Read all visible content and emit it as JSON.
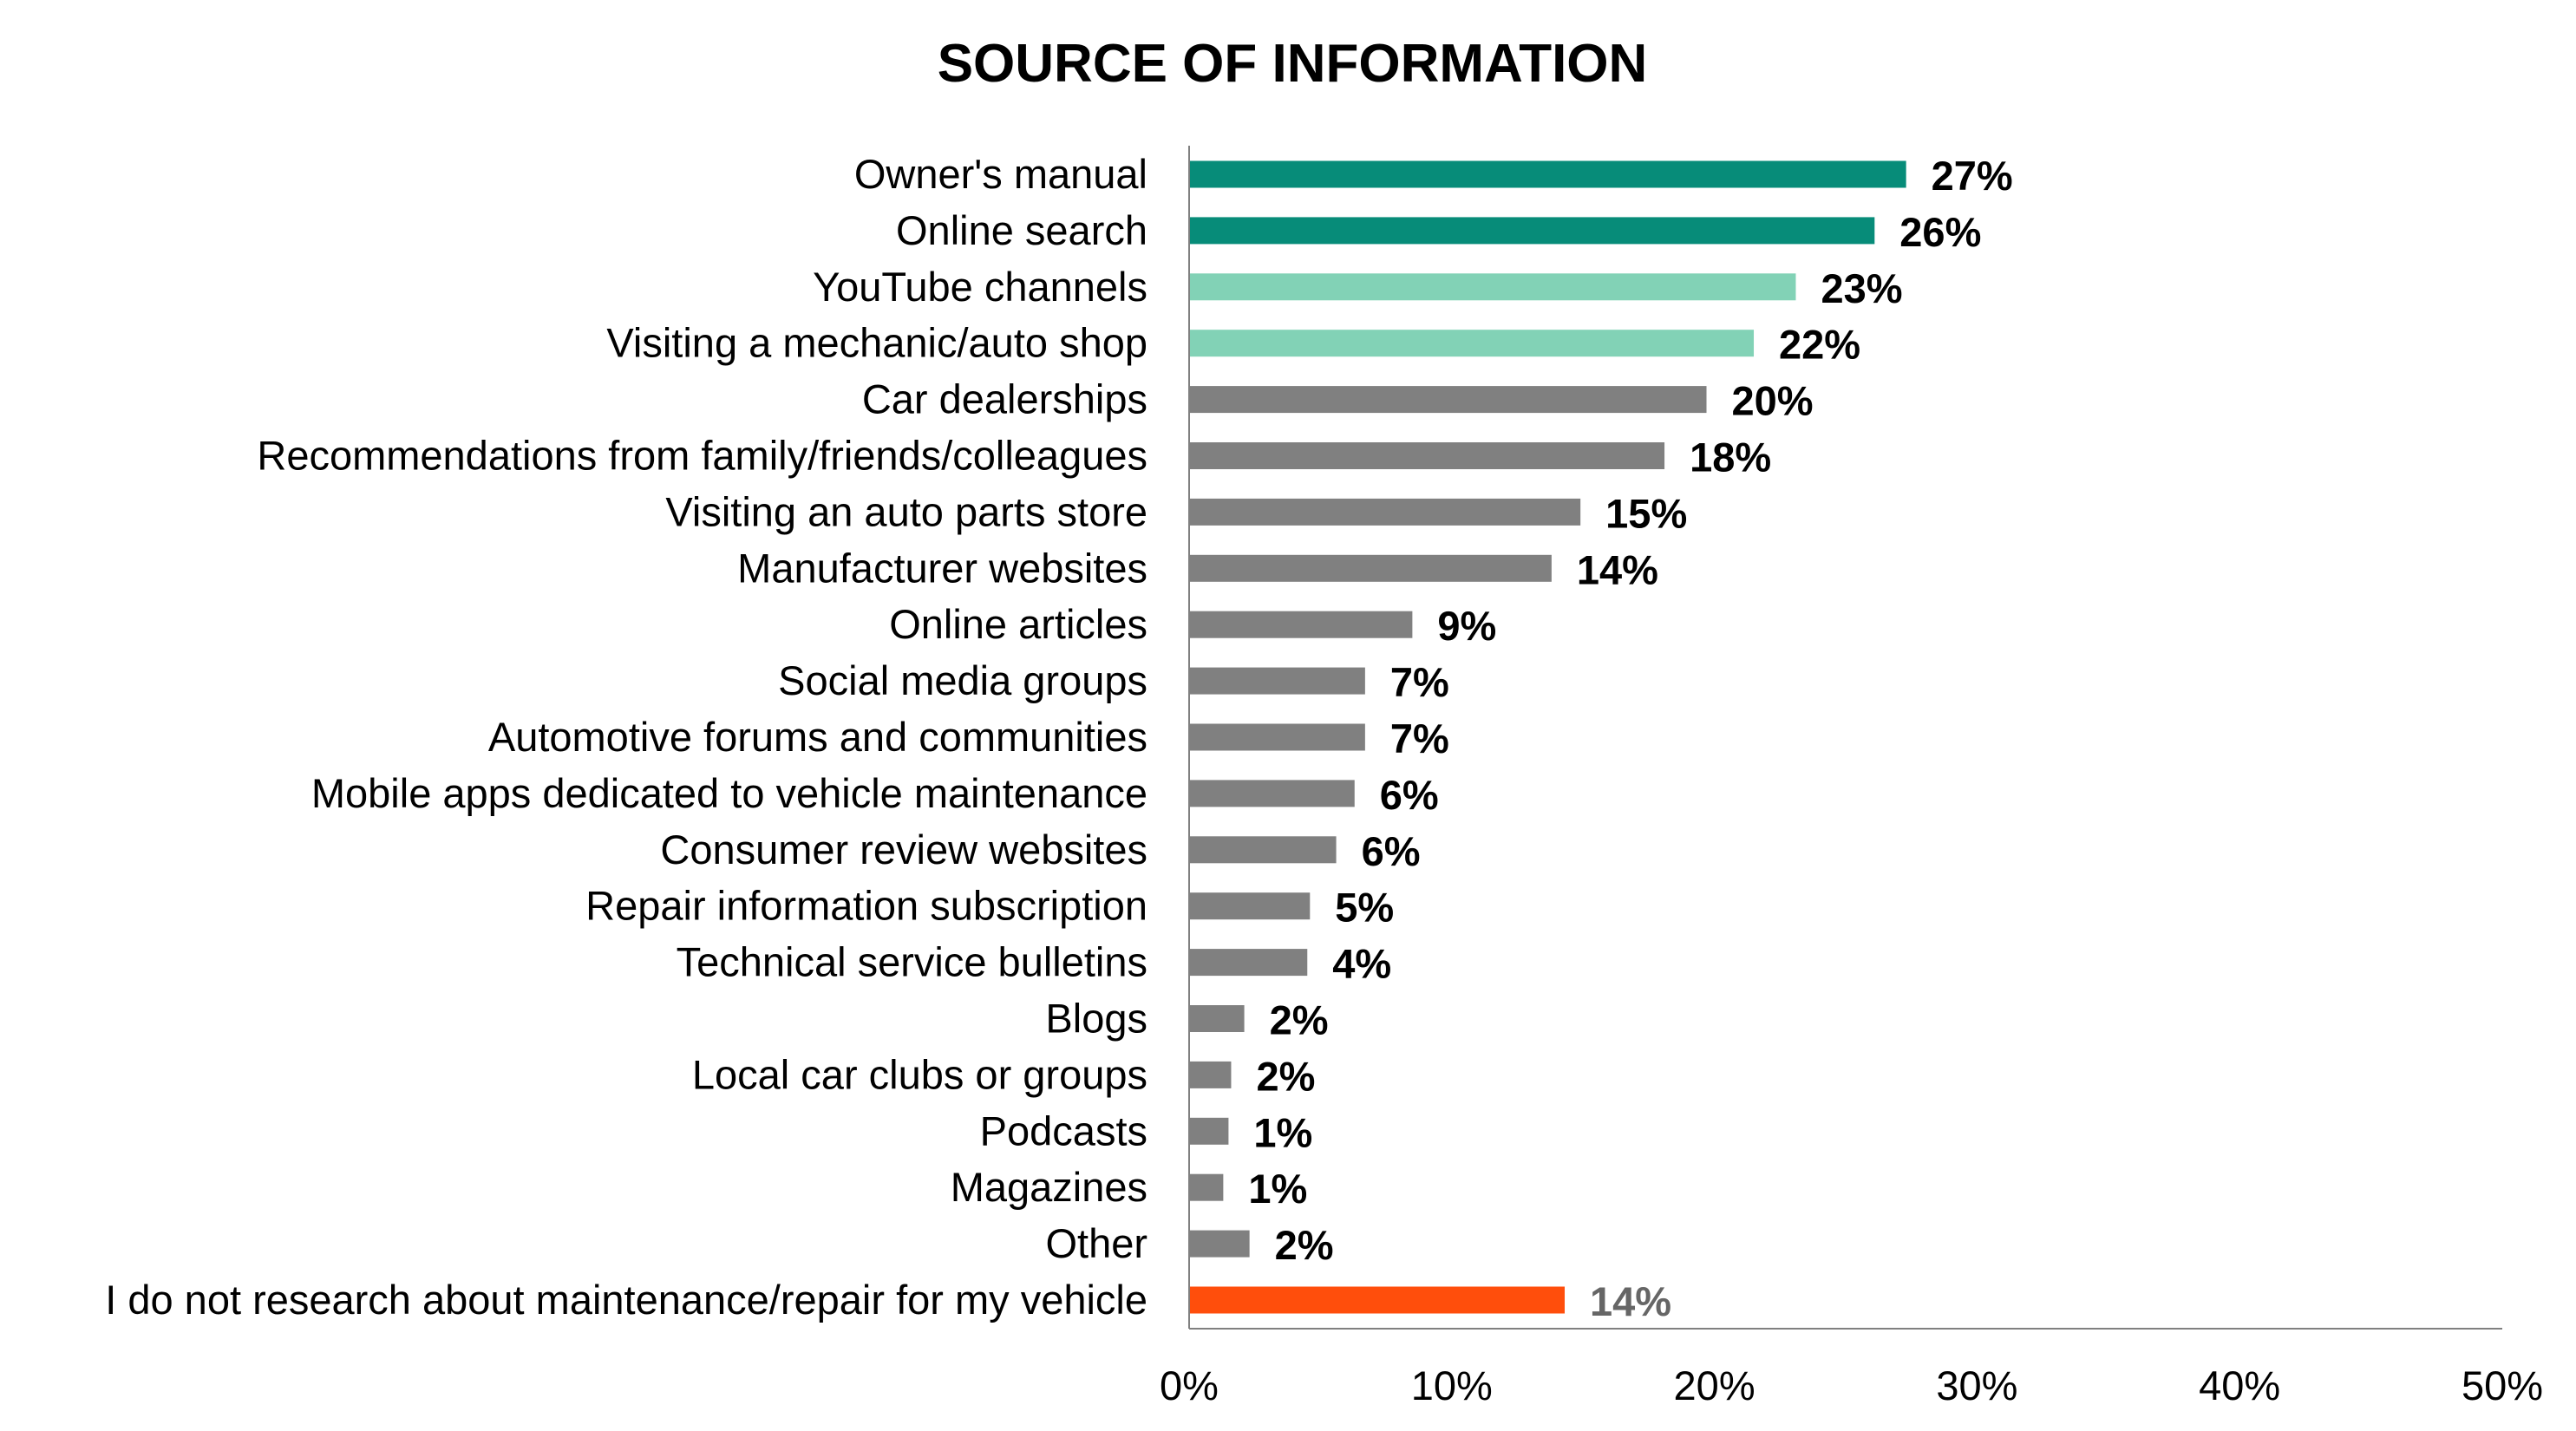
{
  "chart_data": {
    "type": "bar",
    "orientation": "horizontal",
    "title": "SOURCE OF INFORMATION",
    "xlabel": "",
    "ylabel": "",
    "xlim": [
      0,
      50
    ],
    "x_ticks": [
      "0%",
      "10%",
      "20%",
      "30%",
      "40%",
      "50%"
    ],
    "x_tick_values": [
      0,
      10,
      20,
      30,
      40,
      50
    ],
    "grid": false,
    "categories": [
      "Owner's manual",
      "Online search",
      "YouTube channels",
      "Visiting a mechanic/auto shop",
      "Car dealerships",
      "Recommendations from family/friends/colleagues",
      "Visiting an auto parts store",
      "Manufacturer websites",
      "Online articles",
      "Social media groups",
      "Automotive forums and communities",
      "Mobile apps dedicated to vehicle maintenance",
      "Consumer review websites",
      "Repair information subscription",
      "Technical service bulletins",
      "Blogs",
      "Local car clubs or groups",
      "Podcasts",
      "Magazines",
      "Other",
      "I do not research about maintenance/repair for my vehicle"
    ],
    "values": [
      27.3,
      26.1,
      23.1,
      21.5,
      19.7,
      18.1,
      14.9,
      13.8,
      8.5,
      6.7,
      6.7,
      6.3,
      5.6,
      4.6,
      4.5,
      2.1,
      1.6,
      1.5,
      1.3,
      2.3,
      14.3
    ],
    "value_labels": [
      "27%",
      "26%",
      "23%",
      "22%",
      "20%",
      "18%",
      "15%",
      "14%",
      "9%",
      "7%",
      "7%",
      "6%",
      "6%",
      "5%",
      "4%",
      "2%",
      "2%",
      "1%",
      "1%",
      "2%",
      "14%"
    ],
    "bar_colors": [
      "#078c79",
      "#078c79",
      "#82d2b6",
      "#82d2b6",
      "#808080",
      "#808080",
      "#808080",
      "#808080",
      "#808080",
      "#808080",
      "#808080",
      "#808080",
      "#808080",
      "#808080",
      "#808080",
      "#808080",
      "#808080",
      "#808080",
      "#808080",
      "#808080",
      "#ff4e0c"
    ],
    "label_colors": [
      "#000000",
      "#000000",
      "#000000",
      "#000000",
      "#000000",
      "#000000",
      "#000000",
      "#000000",
      "#000000",
      "#000000",
      "#000000",
      "#000000",
      "#000000",
      "#000000",
      "#000000",
      "#000000",
      "#000000",
      "#000000",
      "#000000",
      "#000000",
      "#666666"
    ]
  }
}
